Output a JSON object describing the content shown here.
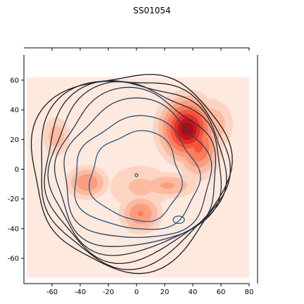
{
  "chart_data": {
    "type": "heatmap",
    "title": "SS01054",
    "xlabel": "",
    "ylabel": "",
    "xlim": [
      -80,
      80
    ],
    "ylim": [
      -77,
      77
    ],
    "xticks": [
      -60,
      -40,
      -20,
      0,
      20,
      40,
      60,
      80
    ],
    "yticks": [
      -60,
      -40,
      -20,
      0,
      20,
      40,
      60
    ],
    "grid": false,
    "colors": {
      "fill_background": "#fee9df",
      "fill_light": "#fcbba1",
      "fill_medium": "#fb7b5b",
      "fill_strong": "#e32f27",
      "fill_peak": "#a50f15",
      "contour_outer": "#1b1b1b",
      "contour_mid": "#233044",
      "contour_inner": "#2c5a86"
    },
    "density_fill": {
      "extent": {
        "x": [
          -78,
          80
        ],
        "y": [
          -73,
          62
        ]
      },
      "blobs": [
        {
          "name": "peak-upper-right",
          "center": [
            36,
            27
          ],
          "spread": [
            10,
            11
          ],
          "weight": 1.0
        },
        {
          "name": "ridge-upper-right",
          "center": [
            44,
            16
          ],
          "spread": [
            8,
            11
          ],
          "weight": 0.55
        },
        {
          "name": "patch-upper-right-outer",
          "center": [
            53,
            30
          ],
          "spread": [
            9,
            10
          ],
          "weight": 0.22
        },
        {
          "name": "patch-left",
          "center": [
            -35,
            -9
          ],
          "spread": [
            8,
            6
          ],
          "weight": 0.34
        },
        {
          "name": "patch-far-left",
          "center": [
            -57,
            22
          ],
          "spread": [
            6,
            8
          ],
          "weight": 0.18
        },
        {
          "name": "patch-lower-center",
          "center": [
            3,
            -30
          ],
          "spread": [
            8,
            7
          ],
          "weight": 0.36
        },
        {
          "name": "patch-center-right",
          "center": [
            22,
            -11
          ],
          "spread": [
            12,
            5
          ],
          "weight": 0.24
        },
        {
          "name": "patch-center",
          "center": [
            3,
            -12
          ],
          "spread": [
            15,
            10
          ],
          "weight": 0.14
        }
      ],
      "levels": [
        0.05,
        0.12,
        0.22,
        0.35,
        0.5,
        0.65,
        0.8,
        0.92
      ]
    },
    "contour_levels": [
      {
        "level": 1,
        "center": [
          -5,
          0
        ],
        "radii": [
          70,
          66
        ]
      },
      {
        "level": 2,
        "center": [
          -4,
          0
        ],
        "radii": [
          67,
          63
        ]
      },
      {
        "level": 3,
        "center": [
          -3,
          0
        ],
        "radii": [
          64,
          60
        ]
      },
      {
        "level": 4,
        "center": [
          -2,
          0
        ],
        "radii": [
          61,
          57
        ]
      },
      {
        "level": 5,
        "center": [
          -1,
          -1
        ],
        "radii": [
          57,
          53
        ]
      },
      {
        "level": 6,
        "center": [
          0,
          -2
        ],
        "radii": [
          52,
          47
        ]
      },
      {
        "level": 7,
        "center": [
          0,
          -4
        ],
        "radii": [
          44,
          38
        ]
      },
      {
        "level": 8,
        "center": [
          0,
          -5
        ],
        "radii": [
          32,
          30
        ]
      }
    ],
    "contour_marks": [
      {
        "name": "small-contour-center",
        "center": [
          0,
          -4
        ],
        "radii": [
          1,
          1
        ]
      },
      {
        "name": "small-contour-lower-right",
        "center": [
          30,
          -34
        ],
        "radii": [
          4,
          2.5
        ]
      }
    ]
  }
}
